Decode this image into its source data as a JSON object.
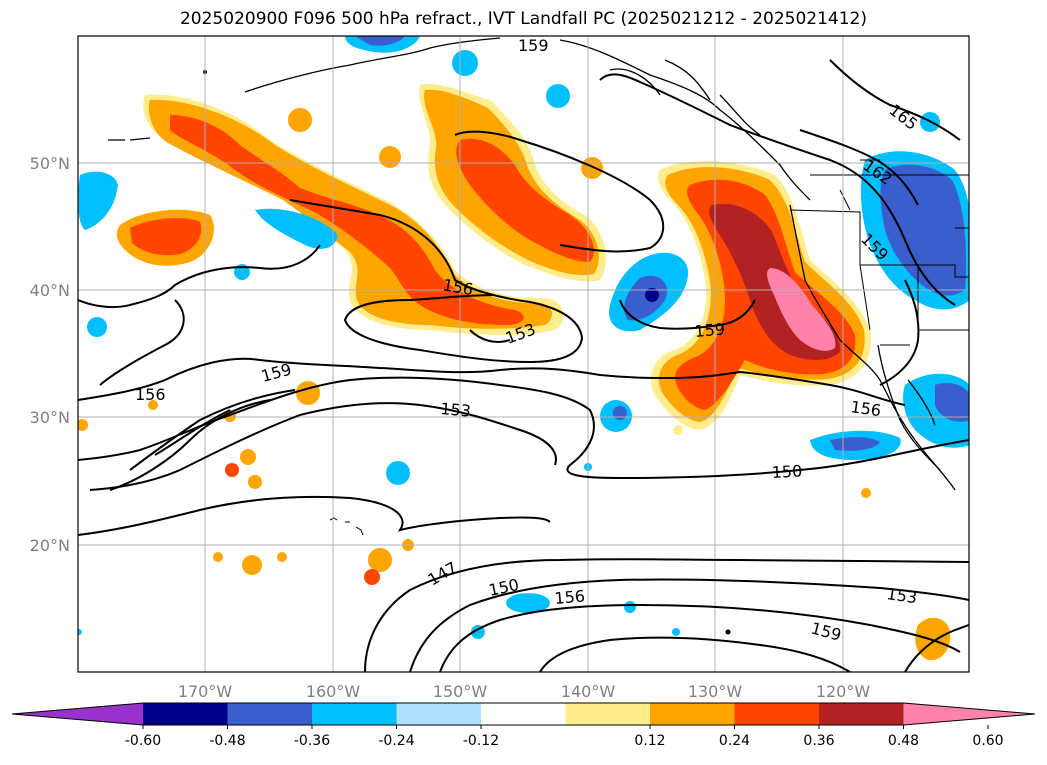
{
  "title": "2025020900 F096 500 hPa refract., IVT Landfall PC (2025021212 - 2025021412)",
  "axes": {
    "lat_labels": [
      "50°N",
      "40°N",
      "30°N",
      "20°N"
    ],
    "lon_labels": [
      "170°W",
      "160°W",
      "150°W",
      "140°W",
      "130°W",
      "120°W"
    ]
  },
  "contour_labels": [
    "159",
    "165",
    "162",
    "159",
    "156",
    "153",
    "159",
    "156",
    "159",
    "153",
    "156",
    "150",
    "147",
    "150",
    "156",
    "153",
    "159"
  ],
  "colorbar": {
    "colors": [
      "#9932cc",
      "#00008b",
      "#3a5fcd",
      "#00bfff",
      "#b0e2ff",
      "#ffffff",
      "#ffec8b",
      "#ffa500",
      "#ff4500",
      "#b22222",
      "#ff82ab"
    ],
    "tick_labels": [
      "-0.60",
      "-0.48",
      "-0.36",
      "-0.24",
      "-0.12",
      "0.12",
      "0.24",
      "0.36",
      "0.48",
      "0.60"
    ]
  }
}
